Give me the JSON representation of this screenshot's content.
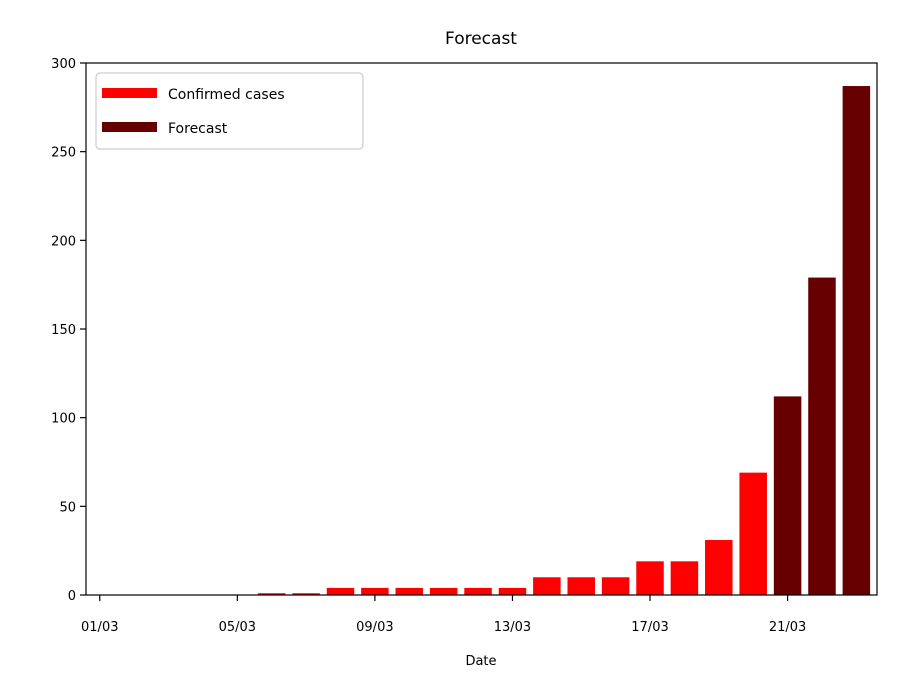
{
  "chart_data": {
    "type": "bar",
    "title": "Forecast",
    "xlabel": "Date",
    "ylabel": "",
    "ylim": [
      0,
      300
    ],
    "yticks": [
      0,
      50,
      100,
      150,
      200,
      250,
      300
    ],
    "xlim": [
      -0.4,
      22.6
    ],
    "xticks": [
      {
        "index": 0,
        "label": "01/03"
      },
      {
        "index": 4,
        "label": "05/03"
      },
      {
        "index": 8,
        "label": "09/03"
      },
      {
        "index": 12,
        "label": "13/03"
      },
      {
        "index": 16,
        "label": "17/03"
      },
      {
        "index": 20,
        "label": "21/03"
      }
    ],
    "categories": [
      "01/03",
      "02/03",
      "03/03",
      "04/03",
      "05/03",
      "06/03",
      "07/03",
      "08/03",
      "09/03",
      "10/03",
      "11/03",
      "12/03",
      "13/03",
      "14/03",
      "15/03",
      "16/03",
      "17/03",
      "18/03",
      "19/03",
      "20/03",
      "21/03",
      "22/03",
      "23/03"
    ],
    "series": [
      {
        "name": "Confirmed cases",
        "color": "#ff0000",
        "values": [
          0,
          0,
          0,
          0,
          0,
          1,
          1,
          4,
          4,
          4,
          4,
          4,
          4,
          10,
          10,
          10,
          19,
          19,
          31,
          69,
          null,
          null,
          null
        ]
      },
      {
        "name": "Forecast",
        "color": "#660000",
        "values": [
          null,
          null,
          null,
          null,
          null,
          null,
          null,
          null,
          null,
          null,
          null,
          null,
          null,
          null,
          null,
          null,
          null,
          null,
          null,
          null,
          112,
          179,
          287
        ]
      }
    ],
    "legend": {
      "position": "upper-left",
      "entries": [
        {
          "label": "Confirmed cases",
          "color": "#ff0000"
        },
        {
          "label": "Forecast",
          "color": "#660000"
        }
      ]
    }
  }
}
